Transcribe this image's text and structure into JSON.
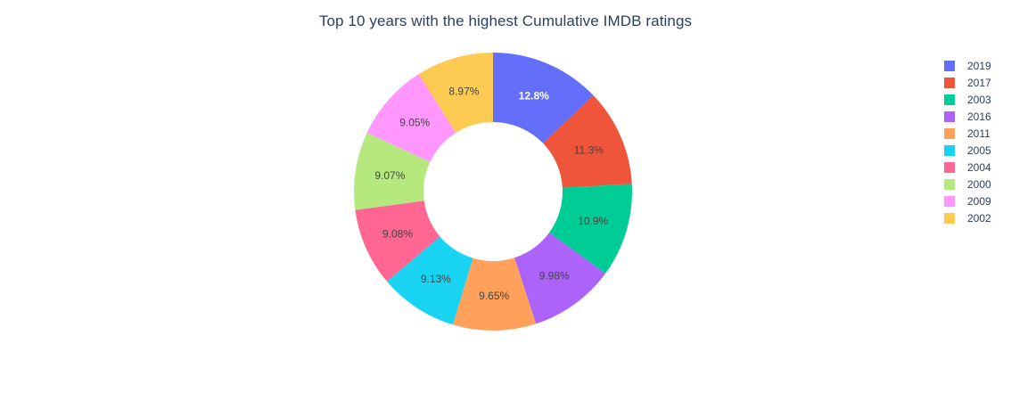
{
  "chart_data": {
    "type": "pie",
    "hole": 0.5,
    "title": "Top 10 years with the highest Cumulative IMDB ratings",
    "legend_position": "right",
    "slices": [
      {
        "label": "2019",
        "value": 12.8,
        "text": "12.8%",
        "color": "#636efa",
        "text_color": "#ffffff"
      },
      {
        "label": "2017",
        "value": 11.3,
        "text": "11.3%",
        "color": "#EF553B",
        "text_color": "#444444"
      },
      {
        "label": "2003",
        "value": 10.9,
        "text": "10.9%",
        "color": "#00cc96",
        "text_color": "#444444"
      },
      {
        "label": "2016",
        "value": 9.98,
        "text": "9.98%",
        "color": "#ab63fa",
        "text_color": "#444444"
      },
      {
        "label": "2011",
        "value": 9.65,
        "text": "9.65%",
        "color": "#FFA15A",
        "text_color": "#444444"
      },
      {
        "label": "2005",
        "value": 9.13,
        "text": "9.13%",
        "color": "#19d3f3",
        "text_color": "#444444"
      },
      {
        "label": "2004",
        "value": 9.08,
        "text": "9.08%",
        "color": "#FF6692",
        "text_color": "#444444"
      },
      {
        "label": "2000",
        "value": 9.07,
        "text": "9.07%",
        "color": "#B6E880",
        "text_color": "#444444"
      },
      {
        "label": "2009",
        "value": 9.05,
        "text": "9.05%",
        "color": "#FF97FF",
        "text_color": "#444444"
      },
      {
        "label": "2002",
        "value": 8.97,
        "text": "8.97%",
        "color": "#FECB52",
        "text_color": "#444444"
      }
    ]
  }
}
